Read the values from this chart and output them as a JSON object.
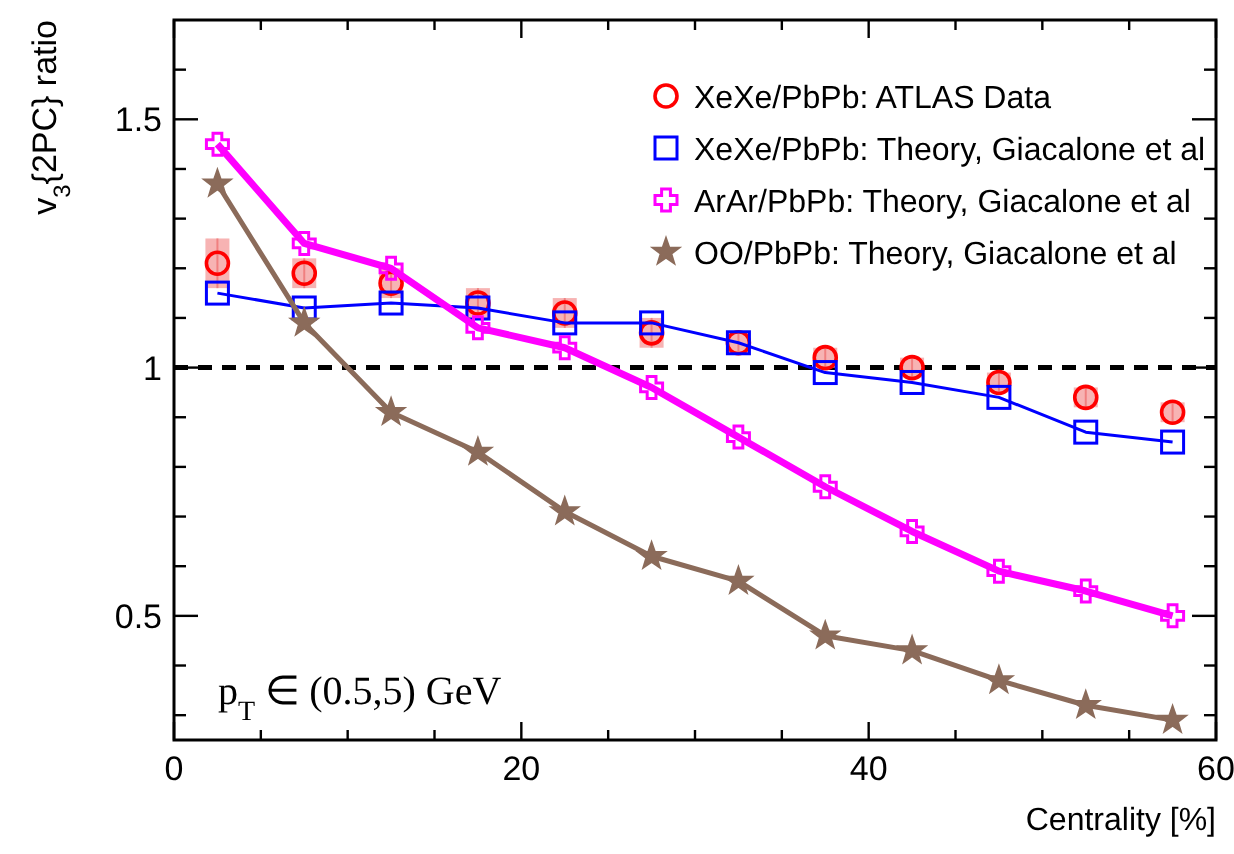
{
  "chart_data": {
    "type": "line",
    "xlabel": "Centrality [%]",
    "ylabel": "v$_{3}${2PC} ratio",
    "x": [
      2.5,
      7.5,
      12.5,
      17.5,
      22.5,
      27.5,
      32.5,
      37.5,
      42.5,
      47.5,
      52.5,
      57.5
    ],
    "series": [
      {
        "name": "XeXe/PbPb: ATLAS Data",
        "type": "scatter",
        "marker": "circle",
        "color": "#ff0000",
        "values": [
          1.21,
          1.19,
          1.17,
          1.13,
          1.11,
          1.07,
          1.05,
          1.02,
          1.0,
          0.97,
          0.94,
          0.91
        ],
        "errors": [
          0.05,
          0.03,
          0.03,
          0.03,
          0.03,
          0.03,
          0.02,
          0.02,
          0.02,
          0.02,
          0.02,
          0.02
        ]
      },
      {
        "name": "XeXe/PbPb: Theory, Giacalone et al",
        "marker": "square",
        "color": "#0000ff",
        "values": [
          1.15,
          1.12,
          1.13,
          1.12,
          1.09,
          1.09,
          1.05,
          0.99,
          0.97,
          0.94,
          0.87,
          0.85
        ]
      },
      {
        "name": "ArAr/PbPb: Theory, Giacalone et al",
        "marker": "cross",
        "color": "#ff00ff",
        "values": [
          1.45,
          1.25,
          1.2,
          1.08,
          1.04,
          0.96,
          0.86,
          0.76,
          0.67,
          0.59,
          0.55,
          0.5
        ]
      },
      {
        "name": "OO/PbPb: Theory, Giacalone et al",
        "marker": "star",
        "color": "#8b6b5a",
        "values": [
          1.37,
          1.09,
          0.91,
          0.83,
          0.71,
          0.62,
          0.57,
          0.46,
          0.43,
          0.37,
          0.32,
          0.29
        ]
      }
    ],
    "xlim": [
      0,
      60
    ],
    "ylim": [
      0.25,
      1.7
    ],
    "xticks": [
      0,
      {
        "value": 5,
        "label": null
      },
      {
        "value": 10,
        "label": null
      },
      {
        "value": 15,
        "label": null
      },
      20,
      {
        "value": 25,
        "label": null
      },
      {
        "value": 30,
        "label": null
      },
      {
        "value": 35,
        "label": null
      },
      40,
      {
        "value": 45,
        "label": null
      },
      {
        "value": 50,
        "label": null
      },
      {
        "value": 55,
        "label": null
      },
      60
    ],
    "yticks": [
      {
        "value": 0.3,
        "label": null
      },
      {
        "value": 0.4,
        "label": null
      },
      0.5,
      {
        "value": 0.6,
        "label": null
      },
      {
        "value": 0.7,
        "label": null
      },
      {
        "value": 0.8,
        "label": null
      },
      {
        "value": 0.9,
        "label": null
      },
      1,
      {
        "value": 1.1,
        "label": null
      },
      {
        "value": 1.2,
        "label": null
      },
      {
        "value": 1.3,
        "label": null
      },
      {
        "value": 1.4,
        "label": null
      },
      1.5,
      {
        "value": 1.6,
        "label": null
      }
    ],
    "ref_lines": [
      {
        "axis": "y",
        "value": 1,
        "line_style": "dashed",
        "color": "#000000"
      }
    ],
    "annotations": [
      "p$_{T}$ ∈ (0.5,5) GeV"
    ],
    "legend": "top right",
    "grid": false
  }
}
